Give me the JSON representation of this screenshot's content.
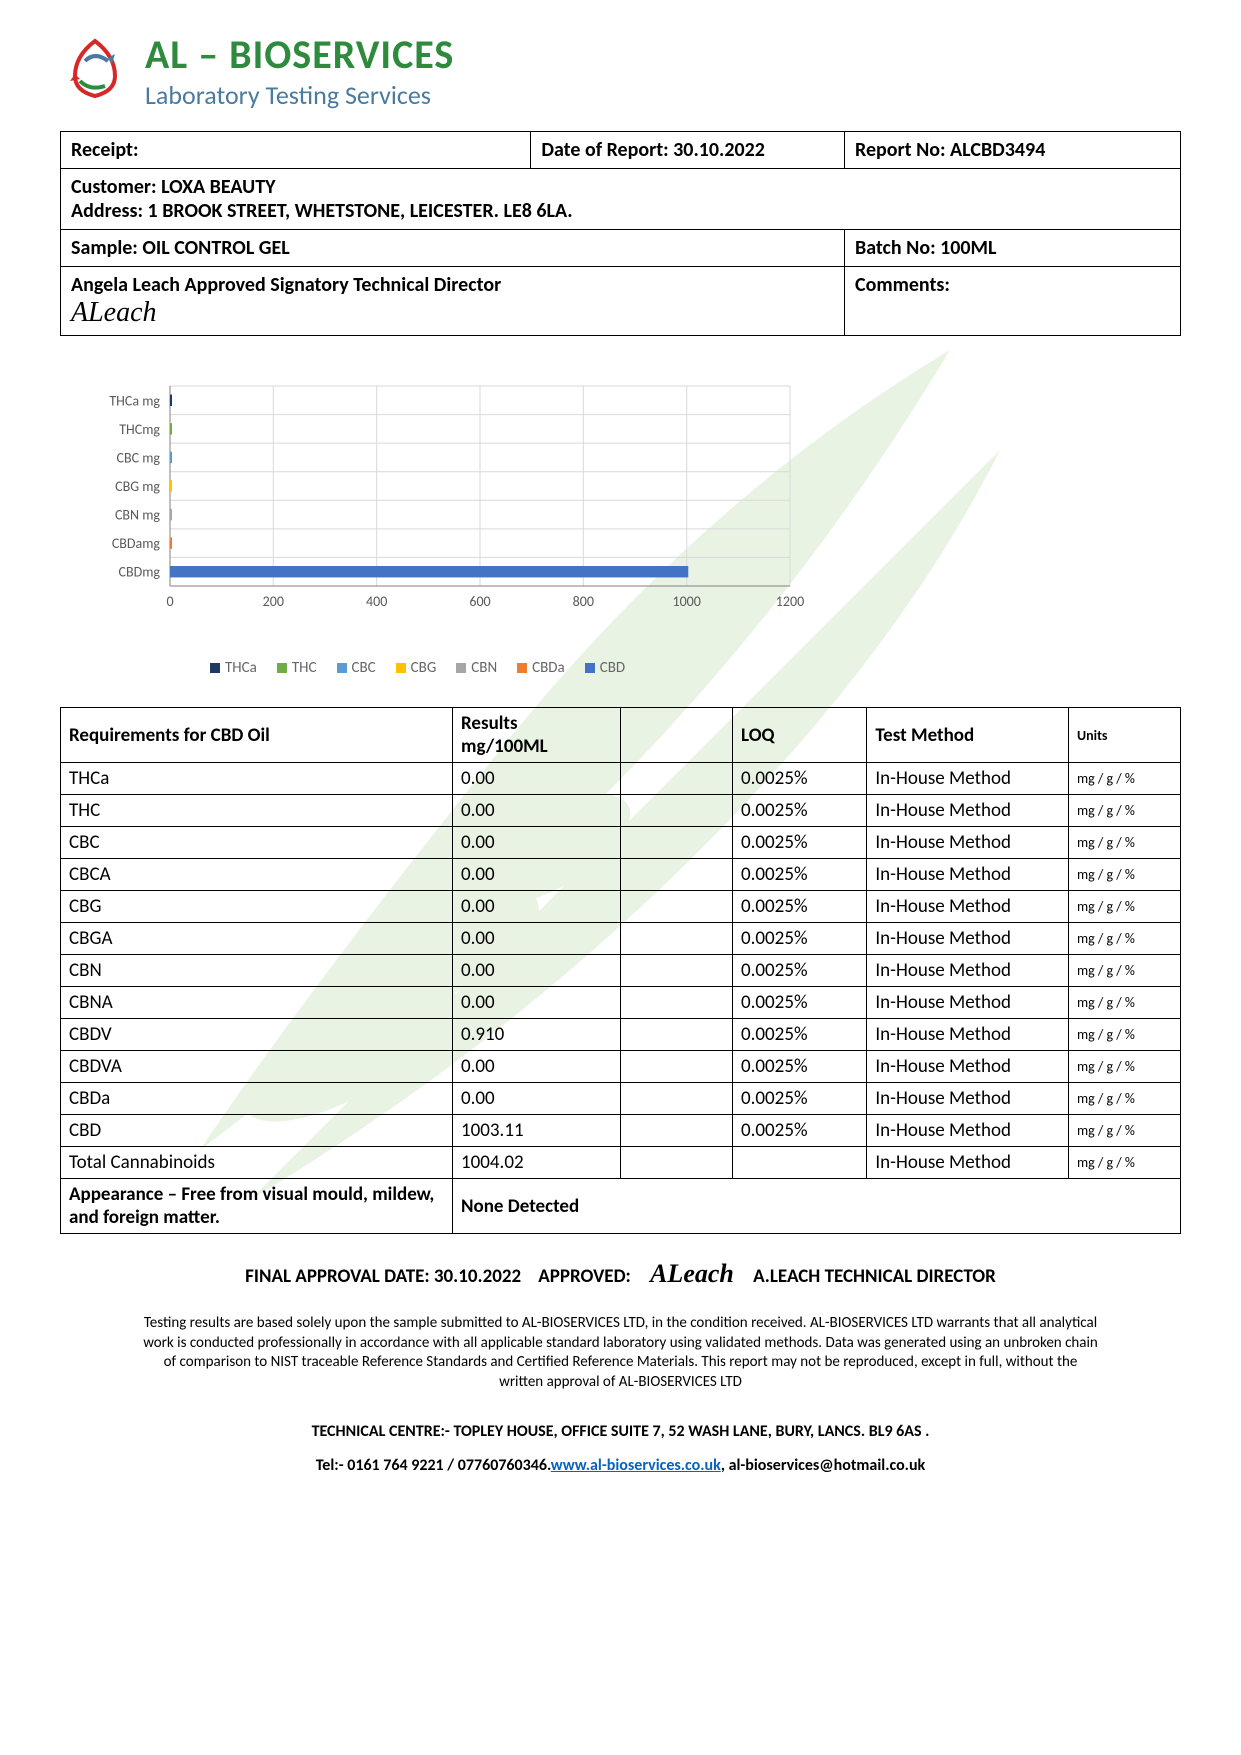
{
  "logo": {
    "main": "AL – BIOSERVICES",
    "sub": "Laboratory Testing Services",
    "main_color": "#2e8b3e",
    "sub_color": "#4a7a9e"
  },
  "header": {
    "receipt_label": "Receipt:",
    "date_label": "Date of Report: 30.10.2022",
    "report_no_label": "Report No: ",
    "report_no": "ALCBD3494",
    "customer_label": "Customer: ",
    "customer": "LOXA BEAUTY",
    "address_label": "Address:   ",
    "address": "1 BROOK STREET, WHETSTONE, LEICESTER. LE8 6LA.",
    "sample_label": "Sample: ",
    "sample": "OIL CONTROL GEL",
    "batch_label": "Batch No: ",
    "batch": "100ML",
    "signatory": "Angela Leach Approved Signatory Technical Director",
    "signature": "ALeach",
    "comments_label": "Comments:"
  },
  "chart": {
    "type": "bar-horizontal",
    "y_labels": [
      "THCa mg",
      "THCmg",
      "CBC mg",
      "CBG mg",
      "CBN mg",
      "CBDamg",
      "CBDmg"
    ],
    "x_ticks": [
      0,
      200,
      400,
      600,
      800,
      1000,
      1200
    ],
    "xlim": [
      0,
      1200
    ],
    "series": [
      {
        "name": "THCa",
        "color": "#1f3864",
        "value": 0
      },
      {
        "name": "THC",
        "color": "#70ad47",
        "value": 0
      },
      {
        "name": "CBC",
        "color": "#5b9bd5",
        "value": 0
      },
      {
        "name": "CBG",
        "color": "#ffc000",
        "value": 0
      },
      {
        "name": "CBN",
        "color": "#a6a6a6",
        "value": 0
      },
      {
        "name": "CBDa",
        "color": "#ed7d31",
        "value": 0
      },
      {
        "name": "CBD",
        "color": "#4472c4",
        "value": 1003.11
      }
    ],
    "grid_color": "#d9d9d9",
    "axis_color": "#808080",
    "label_color": "#595959",
    "label_fontsize": 14,
    "background_color": "#ffffff"
  },
  "results": {
    "columns": [
      "Requirements for CBD Oil",
      "Results mg/100ML",
      "",
      "LOQ",
      "Test Method",
      "Units"
    ],
    "rows": [
      [
        "THCa",
        "0.00",
        "",
        "0.0025%",
        "In-House Method",
        "mg / g / %"
      ],
      [
        "THC",
        "0.00",
        "",
        "0.0025%",
        "In-House Method",
        "mg / g / %"
      ],
      [
        "CBC",
        "0.00",
        "",
        "0.0025%",
        "In-House Method",
        "mg / g / %"
      ],
      [
        "CBCA",
        "0.00",
        "",
        "0.0025%",
        "In-House Method",
        "mg / g / %"
      ],
      [
        "CBG",
        "0.00",
        "",
        "0.0025%",
        "In-House Method",
        "mg / g / %"
      ],
      [
        "CBGA",
        "0.00",
        "",
        "0.0025%",
        "In-House Method",
        "mg / g / %"
      ],
      [
        "CBN",
        "0.00",
        "",
        "0.0025%",
        "In-House Method",
        "mg / g / %"
      ],
      [
        "CBNA",
        "0.00",
        "",
        "0.0025%",
        "In-House Method",
        "mg / g / %"
      ],
      [
        "CBDV",
        "0.910",
        "",
        "0.0025%",
        "In-House Method",
        "mg / g / %"
      ],
      [
        "CBDVA",
        "0.00",
        "",
        "0.0025%",
        "In-House Method",
        "mg / g / %"
      ],
      [
        "CBDa",
        "0.00",
        "",
        "0.0025%",
        "In-House Method",
        "mg / g / %"
      ],
      [
        "CBD",
        "1003.11",
        "",
        "0.0025%",
        "In-House Method",
        "mg / g / %"
      ],
      [
        "Total Cannabinoids",
        "1004.02",
        "",
        "",
        "In-House Method",
        "mg / g / %"
      ]
    ],
    "appearance_label": "Appearance – Free from visual mould, mildew, and foreign matter.",
    "appearance_result": "None Detected"
  },
  "approval": {
    "date_label": "FINAL APPROVAL DATE: 30.10.2022",
    "approved_label": "APPROVED:",
    "signature": "ALeach",
    "name": "A.LEACH TECHNICAL DIRECTOR"
  },
  "disclaimer": "Testing results are based solely upon the sample submitted to AL-BIOSERVICES LTD, in the condition received. AL-BIOSERVICES LTD warrants that all analytical work is conducted professionally in accordance with all applicable standard laboratory using validated methods. Data was generated using an unbroken chain of comparison to NIST traceable Reference Standards and Certified Reference Materials. This report may not be reproduced, except in full, without the written approval of AL-BIOSERVICES LTD",
  "footer": {
    "tech_centre": "TECHNICAL CENTRE:- TOPLEY HOUSE, OFFICE SUITE 7, 52 WASH LANE, BURY, LANCS. BL9 6AS           .",
    "tel_label": "Tel:- 0161 764 9221 / 07760760346.",
    "website": "www.al-bioservices.co.uk",
    "email_sep": ",  ",
    "email": "al-bioservices@hotmail.co.uk"
  }
}
